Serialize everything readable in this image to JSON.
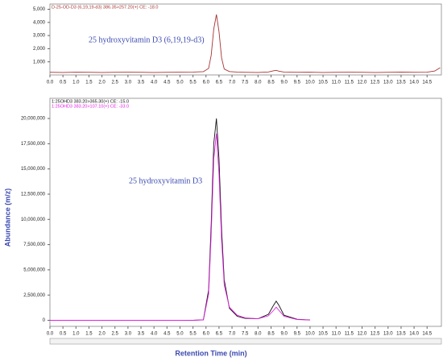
{
  "chart_data": [
    {
      "type": "line",
      "annotation": "25 hydroxyvitamin D3 (6,19,19-d3)",
      "x": [
        0,
        0.5,
        1,
        1.5,
        2,
        2.5,
        3,
        3.5,
        4,
        4.5,
        5,
        5.5,
        5.9,
        6.1,
        6.2,
        6.3,
        6.4,
        6.5,
        6.6,
        6.7,
        6.9,
        7.2,
        7.5,
        8,
        8.4,
        8.6,
        8.7,
        8.8,
        9,
        9.5,
        10,
        10.5,
        11,
        11.5,
        12,
        12.5,
        13,
        13.5,
        14,
        14.5,
        14.8,
        15
      ],
      "series": [
        {
          "name": "D-25-OD-D3 (6,19,19-d3) 386.35>257.20(+) CE: -18.0",
          "color": "#a83232",
          "values": [
            200,
            190,
            210,
            200,
            190,
            200,
            210,
            200,
            190,
            200,
            210,
            220,
            250,
            500,
            1500,
            3500,
            4600,
            3300,
            1300,
            450,
            260,
            220,
            200,
            190,
            230,
            320,
            350,
            290,
            220,
            200,
            210,
            190,
            200,
            210,
            200,
            190,
            200,
            220,
            200,
            210,
            300,
            550
          ]
        }
      ],
      "xlim": [
        0,
        15.05
      ],
      "ylim": [
        0,
        5400
      ],
      "xticks": [
        {
          "value": 0,
          "label": "0.0"
        },
        0.5,
        {
          "value": 1,
          "label": "1.0"
        },
        1.5,
        {
          "value": 2,
          "label": "2.0"
        },
        2.5,
        {
          "value": 3,
          "label": "3.0"
        },
        3.5,
        {
          "value": 4,
          "label": "4.0"
        },
        4.5,
        {
          "value": 5,
          "label": "5.0"
        },
        5.5,
        {
          "value": 6,
          "label": "6.0"
        },
        6.5,
        {
          "value": 7,
          "label": "7.0"
        },
        7.5,
        {
          "value": 8,
          "label": "8.0"
        },
        8.5,
        {
          "value": 9,
          "label": "9.0"
        },
        9.5,
        {
          "value": 10,
          "label": "10.0"
        },
        10.5,
        {
          "value": 11,
          "label": "11.0"
        },
        11.5,
        {
          "value": 12,
          "label": "12.0"
        },
        12.5,
        {
          "value": 13,
          "label": "13.0"
        },
        13.5,
        {
          "value": 14,
          "label": "14.0"
        },
        14.5
      ],
      "yticks": [
        {
          "value": 1000,
          "label": "1,000"
        },
        {
          "value": 2000,
          "label": "2,000"
        },
        {
          "value": 3000,
          "label": "3,000"
        },
        {
          "value": 4000,
          "label": "4,000"
        },
        {
          "value": 5000,
          "label": "5,000"
        }
      ]
    },
    {
      "type": "line",
      "annotation": "25 hydroxyvitamin D3",
      "y_label": "Abundance (m/z)",
      "x_label": "Retention Time (min)",
      "x": [
        0,
        0.5,
        1,
        1.5,
        2,
        2.5,
        3,
        3.5,
        4,
        4.5,
        5,
        5.5,
        5.9,
        6.1,
        6.2,
        6.3,
        6.4,
        6.5,
        6.6,
        6.7,
        6.9,
        7.2,
        7.5,
        8,
        8.4,
        8.6,
        8.7,
        8.8,
        9,
        9.5,
        10,
        10.5,
        11,
        11.5,
        12,
        12.5,
        13,
        13.5,
        14,
        14.5,
        14.8,
        15
      ],
      "series": [
        {
          "name": "1:25OHD3 383.20>365.30(+) CE: -15.0",
          "color": "#111111",
          "values": [
            0,
            0,
            0,
            0,
            0,
            0,
            0,
            0,
            0,
            0,
            0,
            10000,
            50000,
            3000000,
            9500000,
            17500000,
            20000000,
            16000000,
            9000000,
            4000000,
            1200000,
            400000,
            200000,
            150000,
            600000,
            1500000,
            1900000,
            1500000,
            500000,
            100000,
            30000,
            null,
            null,
            null,
            null,
            null,
            null,
            null,
            null,
            null,
            null,
            null
          ]
        },
        {
          "name": "1:25OHD3 383.20>107.10(+) CE: -33.0",
          "color": "#e020e0",
          "values": [
            0,
            0,
            0,
            0,
            0,
            0,
            0,
            0,
            0,
            0,
            0,
            8000,
            40000,
            2600000,
            8500000,
            16000000,
            18500000,
            14500000,
            8000000,
            3500000,
            1300000,
            500000,
            250000,
            150000,
            450000,
            1000000,
            1300000,
            1000000,
            400000,
            80000,
            20000,
            null,
            null,
            null,
            null,
            null,
            null,
            null,
            null,
            null,
            null,
            null
          ]
        }
      ],
      "xlim": [
        0,
        15.05
      ],
      "ylim": [
        -600000,
        22000000
      ],
      "xticks": [
        {
          "value": 0,
          "label": "0.0"
        },
        0.5,
        {
          "value": 1,
          "label": "1.0"
        },
        1.5,
        {
          "value": 2,
          "label": "2.0"
        },
        2.5,
        {
          "value": 3,
          "label": "3.0"
        },
        3.5,
        {
          "value": 4,
          "label": "4.0"
        },
        4.5,
        {
          "value": 5,
          "label": "5.0"
        },
        5.5,
        {
          "value": 6,
          "label": "6.0"
        },
        6.5,
        {
          "value": 7,
          "label": "7.0"
        },
        7.5,
        {
          "value": 8,
          "label": "8.0"
        },
        8.5,
        {
          "value": 9,
          "label": "9.0"
        },
        9.5,
        {
          "value": 10,
          "label": "10.0"
        },
        10.5,
        {
          "value": 11,
          "label": "11.0"
        },
        11.5,
        {
          "value": 12,
          "label": "12.0"
        },
        12.5,
        {
          "value": 13,
          "label": "13.0"
        },
        13.5,
        {
          "value": 14,
          "label": "14.0"
        },
        14.5
      ],
      "yticks": [
        0,
        {
          "value": 2500000,
          "label": "2,500,000"
        },
        {
          "value": 5000000,
          "label": "5,000,000"
        },
        {
          "value": 7500000,
          "label": "7,500,000"
        },
        {
          "value": 10000000,
          "label": "10,000,000"
        },
        {
          "value": 12500000,
          "label": "12,500,000"
        },
        {
          "value": 15000000,
          "label": "15,000,000"
        },
        {
          "value": 17500000,
          "label": "17,500,000"
        },
        {
          "value": 20000000,
          "label": "20,000,000"
        }
      ]
    }
  ]
}
